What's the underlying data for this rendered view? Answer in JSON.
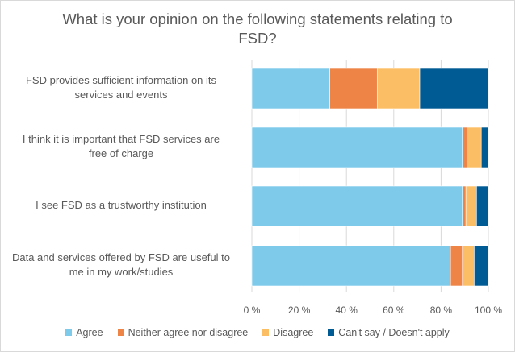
{
  "chart_data": {
    "type": "bar",
    "orientation": "horizontal",
    "stacked": true,
    "percent": true,
    "title_lines": [
      "What is your opinion on the following statements relating to",
      "FSD?"
    ],
    "categories": [
      [
        "FSD provides sufficient information on its",
        "services and events"
      ],
      [
        "I think it is important that FSD services are",
        "free of charge"
      ],
      [
        "I see FSD as a trustworthy institution"
      ],
      [
        "Data and services offered by FSD are useful to",
        "me in my work/studies"
      ]
    ],
    "series": [
      {
        "name": "Agree",
        "color": "#7dcaeb",
        "values": [
          33,
          89,
          89,
          84
        ]
      },
      {
        "name": "Neither agree nor disagree",
        "color": "#ee8547",
        "values": [
          20,
          2,
          1.5,
          5
        ]
      },
      {
        "name": "Disagree",
        "color": "#fcbe64",
        "values": [
          18,
          6,
          4.5,
          5
        ]
      },
      {
        "name": "Can't say / Doesn't apply",
        "color": "#005b94",
        "values": [
          29,
          3,
          5,
          6
        ]
      }
    ],
    "xlim": [
      0,
      100
    ],
    "xticks": [
      "0 %",
      "20 %",
      "40 %",
      "60 %",
      "80 %",
      "100 %"
    ],
    "legend_position": "bottom"
  }
}
